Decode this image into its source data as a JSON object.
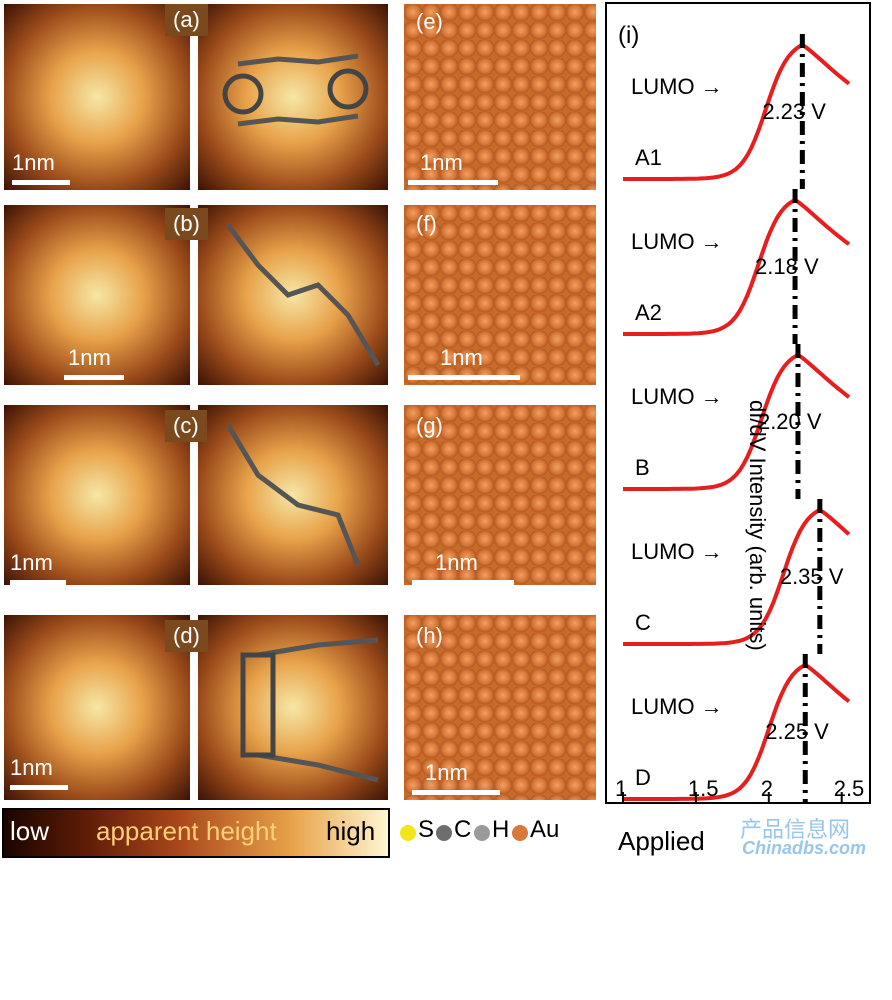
{
  "panels": {
    "a": "(a)",
    "b": "(b)",
    "c": "(c)",
    "d": "(d)",
    "e": "(e)",
    "f": "(f)",
    "g": "(g)",
    "h": "(h)",
    "i": "(i)"
  },
  "scale_label": "1nm",
  "legend": {
    "low": "low",
    "apparent_height": "apparent height",
    "high": "high"
  },
  "atoms": [
    {
      "symbol": "S",
      "color": "#f2e61a"
    },
    {
      "symbol": "C",
      "color": "#6e6e6e"
    },
    {
      "symbol": "H",
      "color": "#9a9a9a"
    },
    {
      "symbol": "Au",
      "color": "#d8783a"
    }
  ],
  "spectra": {
    "ylabel": "dI/dV Intensity (arb. units)",
    "xlabel": "Applied",
    "xticks": [
      "1",
      "1.5",
      "2",
      "2.5"
    ],
    "xlim": [
      1,
      2.55
    ],
    "traces": [
      {
        "name": "A1",
        "lumo_label": "LUMO",
        "voltage_label": "2.23 V",
        "peak_V": 2.23
      },
      {
        "name": "A2",
        "lumo_label": "LUMO",
        "voltage_label": "2.18 V",
        "peak_V": 2.18
      },
      {
        "name": "B",
        "lumo_label": "LUMO",
        "voltage_label": "2.20 V",
        "peak_V": 2.2
      },
      {
        "name": "C",
        "lumo_label": "LUMO",
        "voltage_label": "2.35 V",
        "peak_V": 2.35
      },
      {
        "name": "D",
        "lumo_label": "LUMO",
        "voltage_label": "2.25 V",
        "peak_V": 2.25
      }
    ]
  },
  "watermark": {
    "cn": "产品信息网",
    "en": "Chinadbs.com"
  }
}
